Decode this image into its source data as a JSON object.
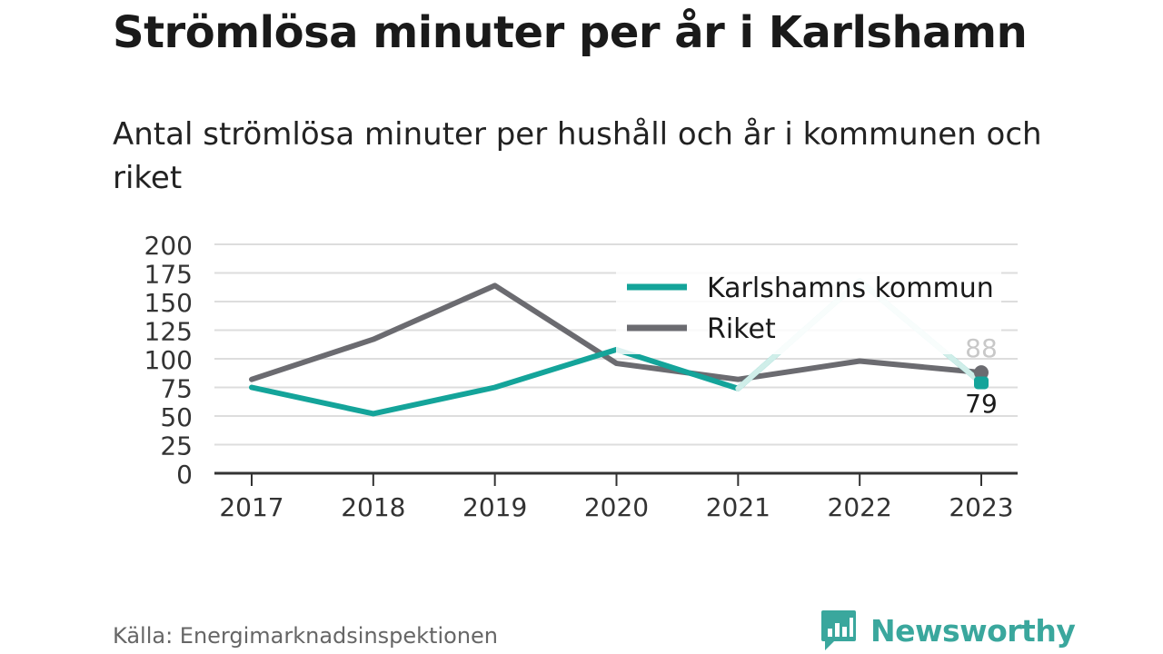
{
  "title": "Strömlösa minuter per år i Karlshamn",
  "subtitle": "Antal strömlösa minuter per hushåll och år i kommunen och riket",
  "source": "Källa: Energimarknadsinspektionen",
  "brand": "Newsworthy",
  "colors": {
    "karlshamn": "#14a49a",
    "riket": "#6b6b70",
    "highlight": "#cfeee9",
    "brand": "#3aa79d",
    "grid": "#dddddd"
  },
  "chart_data": {
    "type": "line",
    "categories": [
      "2017",
      "2018",
      "2019",
      "2020",
      "2021",
      "2022",
      "2023"
    ],
    "ylim": [
      0,
      200
    ],
    "yticks": [
      0,
      25,
      50,
      75,
      100,
      125,
      150,
      175,
      200
    ],
    "grid": true,
    "legend_placement": "top-right",
    "series": [
      {
        "name": "Karlshamns kommun",
        "values": [
          75,
          52,
          75,
          108,
          74,
          168,
          79
        ]
      },
      {
        "name": "Riket",
        "values": [
          82,
          117,
          164,
          96,
          82,
          98,
          88
        ]
      }
    ],
    "end_labels": {
      "Karlshamns kommun": "79",
      "Riket": "88"
    }
  }
}
